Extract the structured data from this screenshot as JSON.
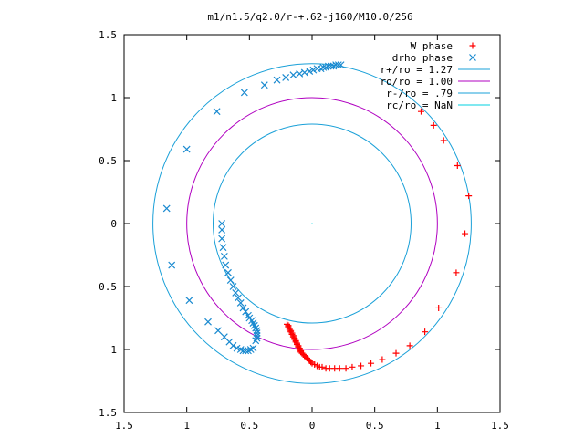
{
  "chart_data": {
    "type": "scatter",
    "title": "m1/n1.5/q2.0/r-+.62-j160/M10.0/256",
    "xlim": [
      -1.5,
      1.5
    ],
    "ylim": [
      -1.5,
      1.5
    ],
    "x_ticks": [
      {
        "value": -1.5,
        "label": "1.5"
      },
      {
        "value": -1.0,
        "label": "1"
      },
      {
        "value": -0.5,
        "label": "0.5"
      },
      {
        "value": 0.0,
        "label": "0"
      },
      {
        "value": 0.5,
        "label": "0.5"
      },
      {
        "value": 1.0,
        "label": "1"
      },
      {
        "value": 1.5,
        "label": "1.5"
      }
    ],
    "y_ticks": [
      {
        "value": 1.5,
        "label": "1.5"
      },
      {
        "value": 1.0,
        "label": "1"
      },
      {
        "value": 0.5,
        "label": "0.5"
      },
      {
        "value": 0.0,
        "label": "0"
      },
      {
        "value": -0.5,
        "label": "0.5"
      },
      {
        "value": -1.0,
        "label": "1"
      },
      {
        "value": -1.5,
        "label": "1.5"
      }
    ],
    "grid": false,
    "legend_position": "top-right",
    "circles": [
      {
        "label": "r+/ro = 1.27",
        "radius": 1.27,
        "color": "#1aa0d8"
      },
      {
        "label": "ro/ro = 1.00",
        "radius": 1.0,
        "color": "#b000c0"
      },
      {
        "label": "r-/ro = .79",
        "radius": 0.79,
        "color": "#1aa0d8"
      },
      {
        "label": "rc/ro = NaN",
        "radius": null,
        "color": "#00d0e0"
      }
    ],
    "series": [
      {
        "name": "W phase",
        "marker": "plus",
        "color": "#ff0000",
        "points": [
          [
            -0.2,
            -0.8
          ],
          [
            -0.19,
            -0.81
          ],
          [
            -0.19,
            -0.82
          ],
          [
            -0.18,
            -0.83
          ],
          [
            -0.18,
            -0.84
          ],
          [
            -0.17,
            -0.85
          ],
          [
            -0.17,
            -0.86
          ],
          [
            -0.16,
            -0.87
          ],
          [
            -0.16,
            -0.88
          ],
          [
            -0.15,
            -0.89
          ],
          [
            -0.15,
            -0.9
          ],
          [
            -0.14,
            -0.91
          ],
          [
            -0.14,
            -0.92
          ],
          [
            -0.13,
            -0.93
          ],
          [
            -0.13,
            -0.94
          ],
          [
            -0.12,
            -0.95
          ],
          [
            -0.12,
            -0.96
          ],
          [
            -0.11,
            -0.97
          ],
          [
            -0.11,
            -0.98
          ],
          [
            -0.1,
            -0.99
          ],
          [
            -0.1,
            -1.0
          ],
          [
            -0.09,
            -1.01
          ],
          [
            -0.09,
            -1.02
          ],
          [
            -0.08,
            -1.03
          ],
          [
            -0.07,
            -1.04
          ],
          [
            -0.06,
            -1.05
          ],
          [
            -0.05,
            -1.06
          ],
          [
            -0.04,
            -1.07
          ],
          [
            -0.03,
            -1.08
          ],
          [
            -0.02,
            -1.09
          ],
          [
            -0.01,
            -1.1
          ],
          [
            0.0,
            -1.11
          ],
          [
            0.02,
            -1.12
          ],
          [
            0.04,
            -1.13
          ],
          [
            0.06,
            -1.14
          ],
          [
            0.08,
            -1.14
          ],
          [
            0.11,
            -1.15
          ],
          [
            0.14,
            -1.15
          ],
          [
            0.18,
            -1.15
          ],
          [
            0.22,
            -1.15
          ],
          [
            0.27,
            -1.15
          ],
          [
            0.32,
            -1.14
          ],
          [
            0.39,
            -1.13
          ],
          [
            0.47,
            -1.11
          ],
          [
            0.56,
            -1.08
          ],
          [
            0.67,
            -1.03
          ],
          [
            0.78,
            -0.97
          ],
          [
            0.9,
            -0.86
          ],
          [
            1.01,
            -0.67
          ],
          [
            1.15,
            -0.39
          ],
          [
            1.22,
            -0.08
          ],
          [
            1.25,
            0.22
          ],
          [
            1.16,
            0.46
          ],
          [
            1.05,
            0.66
          ],
          [
            0.97,
            0.78
          ],
          [
            0.87,
            0.89
          ]
        ]
      },
      {
        "name": "drho phase",
        "marker": "cross",
        "color": "#1a8ad0",
        "points": [
          [
            -0.45,
            -0.93
          ],
          [
            -0.44,
            -0.91
          ],
          [
            -0.44,
            -0.89
          ],
          [
            -0.44,
            -0.87
          ],
          [
            -0.44,
            -0.85
          ],
          [
            -0.45,
            -0.83
          ],
          [
            -0.46,
            -0.81
          ],
          [
            -0.47,
            -0.79
          ],
          [
            -0.48,
            -0.77
          ],
          [
            -0.5,
            -0.75
          ],
          [
            -0.51,
            -0.73
          ],
          [
            -0.53,
            -0.7
          ],
          [
            -0.55,
            -0.67
          ],
          [
            -0.57,
            -0.63
          ],
          [
            -0.59,
            -0.59
          ],
          [
            -0.61,
            -0.55
          ],
          [
            -0.63,
            -0.5
          ],
          [
            -0.65,
            -0.45
          ],
          [
            -0.67,
            -0.39
          ],
          [
            -0.69,
            -0.33
          ],
          [
            -0.7,
            -0.26
          ],
          [
            -0.71,
            -0.19
          ],
          [
            -0.72,
            -0.12
          ],
          [
            -0.72,
            -0.05
          ],
          [
            -0.72,
            0.0
          ],
          [
            -0.47,
            -0.99
          ],
          [
            -0.49,
            -1.0
          ],
          [
            -0.51,
            -1.01
          ],
          [
            -0.53,
            -1.01
          ],
          [
            -0.55,
            -1.01
          ],
          [
            -0.57,
            -1.0
          ],
          [
            -0.6,
            -0.99
          ],
          [
            -0.63,
            -0.97
          ],
          [
            -0.66,
            -0.94
          ],
          [
            -0.7,
            -0.9
          ],
          [
            -0.75,
            -0.85
          ],
          [
            -0.83,
            -0.78
          ],
          [
            -0.98,
            -0.61
          ],
          [
            -1.12,
            -0.33
          ],
          [
            -1.16,
            0.12
          ],
          [
            -1.0,
            0.59
          ],
          [
            -0.76,
            0.89
          ],
          [
            -0.54,
            1.04
          ],
          [
            -0.38,
            1.1
          ],
          [
            -0.28,
            1.14
          ],
          [
            -0.21,
            1.16
          ],
          [
            -0.15,
            1.18
          ],
          [
            -0.1,
            1.19
          ],
          [
            -0.06,
            1.2
          ],
          [
            -0.02,
            1.21
          ],
          [
            0.01,
            1.22
          ],
          [
            0.04,
            1.23
          ],
          [
            0.07,
            1.23
          ],
          [
            0.09,
            1.24
          ],
          [
            0.11,
            1.24
          ],
          [
            0.13,
            1.25
          ],
          [
            0.15,
            1.25
          ],
          [
            0.17,
            1.25
          ],
          [
            0.19,
            1.26
          ],
          [
            0.21,
            1.26
          ],
          [
            0.23,
            1.26
          ]
        ]
      }
    ]
  }
}
